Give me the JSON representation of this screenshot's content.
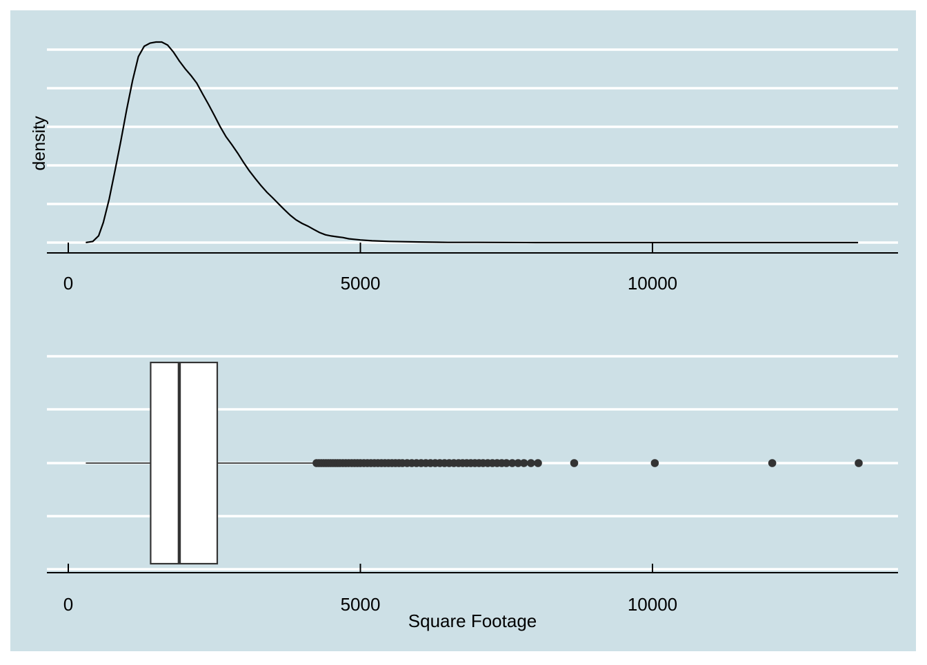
{
  "chart_data": [
    {
      "type": "area",
      "ylabel": "density",
      "xlabel": "",
      "xlim": [
        -370,
        14200
      ],
      "x_ticks": [
        0,
        5000,
        10000
      ],
      "x_tick_labels": [
        "0",
        "5000",
        "10000"
      ],
      "grid": "horizontal",
      "density_curve": {
        "x": [
          300,
          420,
          520,
          600,
          700,
          800,
          900,
          1000,
          1100,
          1200,
          1300,
          1400,
          1500,
          1600,
          1700,
          1800,
          1900,
          2000,
          2100,
          2200,
          2300,
          2400,
          2500,
          2600,
          2700,
          2800,
          2900,
          3000,
          3100,
          3200,
          3300,
          3400,
          3500,
          3600,
          3700,
          3800,
          3900,
          4000,
          4100,
          4200,
          4300,
          4400,
          4500,
          4600,
          4700,
          4800,
          5000,
          5200,
          5500,
          6000,
          6500,
          7000,
          8000,
          9000,
          10000,
          11000,
          12000,
          13520
        ],
        "y": [
          0.0,
          0.006,
          0.034,
          0.1,
          0.217,
          0.36,
          0.507,
          0.664,
          0.808,
          0.927,
          0.979,
          0.995,
          1.0,
          1.0,
          0.985,
          0.95,
          0.906,
          0.867,
          0.833,
          0.795,
          0.741,
          0.689,
          0.634,
          0.578,
          0.528,
          0.488,
          0.446,
          0.4,
          0.357,
          0.32,
          0.284,
          0.251,
          0.223,
          0.193,
          0.164,
          0.136,
          0.113,
          0.096,
          0.082,
          0.066,
          0.05,
          0.039,
          0.033,
          0.029,
          0.025,
          0.019,
          0.013,
          0.009,
          0.006,
          0.003,
          0.001,
          0.001,
          0.0,
          0.0,
          0.0,
          0.0,
          0.0,
          0.0
        ]
      }
    },
    {
      "type": "boxplot",
      "xlabel": "Square Footage",
      "xlim": [
        -370,
        14200
      ],
      "x_ticks": [
        0,
        5000,
        10000
      ],
      "x_tick_labels": [
        "0",
        "5000",
        "10000"
      ],
      "grid": "horizontal",
      "box": {
        "whisker_low": 300,
        "q1": 1410,
        "median": 1900,
        "q3": 2550,
        "whisker_high": 4220
      },
      "outliers": [
        4250,
        4290,
        4330,
        4370,
        4410,
        4450,
        4490,
        4530,
        4570,
        4610,
        4650,
        4700,
        4750,
        4800,
        4850,
        4900,
        4950,
        5000,
        5060,
        5120,
        5180,
        5240,
        5300,
        5360,
        5420,
        5480,
        5540,
        5600,
        5660,
        5720,
        5800,
        5880,
        5960,
        6040,
        6120,
        6200,
        6280,
        6360,
        6440,
        6520,
        6600,
        6680,
        6750,
        6820,
        6890,
        6960,
        7030,
        7100,
        7180,
        7260,
        7340,
        7420,
        7500,
        7600,
        7700,
        7800,
        7920,
        8040,
        8660,
        10040,
        12050,
        13530
      ]
    }
  ]
}
